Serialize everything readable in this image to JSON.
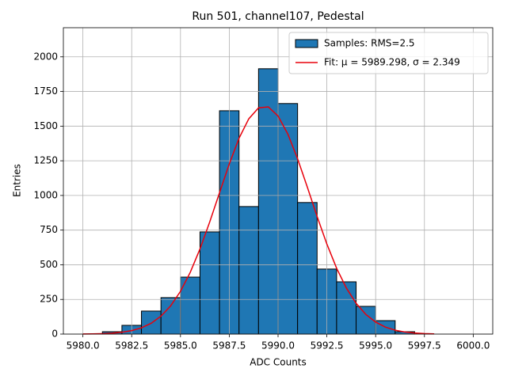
{
  "chart_data": {
    "type": "histogram",
    "title": "Run 501, channel107, Pedestal",
    "xlabel": "ADC Counts",
    "ylabel": "Entries",
    "xlim": [
      5979,
      6001
    ],
    "ylim": [
      0,
      2210
    ],
    "xticks": [
      {
        "value": 5980,
        "label": "5980.0"
      },
      {
        "value": 5982.5,
        "label": "5982.5"
      },
      {
        "value": 5985,
        "label": "5985.0"
      },
      {
        "value": 5987.5,
        "label": "5987.5"
      },
      {
        "value": 5990,
        "label": "5990.0"
      },
      {
        "value": 5992.5,
        "label": "5992.5"
      },
      {
        "value": 5995,
        "label": "5995.0"
      },
      {
        "value": 5997.5,
        "label": "5997.5"
      },
      {
        "value": 6000,
        "label": "6000.0"
      }
    ],
    "yticks": [
      0,
      250,
      500,
      750,
      1000,
      1250,
      1500,
      1750,
      2000
    ],
    "grid": true,
    "legend": "upper right",
    "series": [
      {
        "name": "Samples: RMS=2.5",
        "type": "histogram",
        "color": "#1f77b4",
        "bins": [
          5981,
          5982,
          5983,
          5984,
          5985,
          5986,
          5987,
          5988,
          5989,
          5990,
          5991,
          5992,
          5993,
          5994,
          5995,
          5996,
          5997
        ],
        "values": [
          17,
          63,
          166,
          263,
          411,
          737,
          1611,
          920,
          1914,
          1663,
          949,
          469,
          377,
          200,
          97,
          17
        ]
      },
      {
        "name": "Fit: μ = 5989.298, σ = 2.349",
        "type": "line",
        "color": "#e8000b",
        "x": [
          5980,
          5980.5,
          5981,
          5981.5,
          5982,
          5982.5,
          5983,
          5983.5,
          5984,
          5984.5,
          5985,
          5985.5,
          5986,
          5986.5,
          5987,
          5987.5,
          5988,
          5988.5,
          5989,
          5989.5,
          5990,
          5990.5,
          5991,
          5991.5,
          5992,
          5992.5,
          5993,
          5993.5,
          5994,
          5994.5,
          5995,
          5995.5,
          5996,
          5996.5,
          5997,
          5997.5,
          5998
        ],
        "values": [
          0.65,
          1.5,
          3.2,
          6.7,
          13.2,
          25.0,
          45.2,
          78.2,
          129.4,
          204.3,
          308.4,
          445.2,
          614.1,
          809.3,
          1019.4,
          1227.3,
          1412.1,
          1552.7,
          1631.8,
          1638.9,
          1573.1,
          1443.2,
          1265.2,
          1060.0,
          848.8,
          649.8,
          475.1,
          332.1,
          221.9,
          141.6,
          86.5,
          50.4,
          28.1,
          15.0,
          7.6,
          3.7,
          1.7
        ]
      }
    ]
  }
}
